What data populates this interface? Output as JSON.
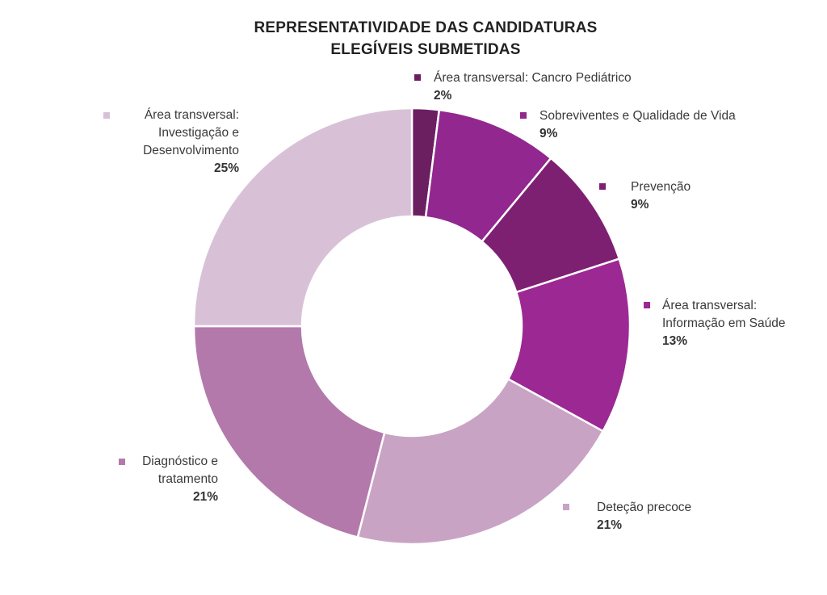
{
  "chart_data": {
    "type": "pie",
    "variant": "donut",
    "title_lines": [
      "REPRESENTATIVIDADE DAS CANDIDATURAS",
      "ELEGÍVEIS SUBMETIDAS"
    ],
    "slices": [
      {
        "label_lines": [
          "Área transversal: Cancro Pediátrico"
        ],
        "value": 2,
        "value_label": "2%",
        "color": "#6b1f61"
      },
      {
        "label_lines": [
          "Sobreviventes e Qualidade de Vida"
        ],
        "value": 9,
        "value_label": "9%",
        "color": "#92278f"
      },
      {
        "label_lines": [
          "Prevenção"
        ],
        "value": 9,
        "value_label": "9%",
        "color": "#7e2072"
      },
      {
        "label_lines": [
          "Área transversal:",
          "Informação em Saúde"
        ],
        "value": 13,
        "value_label": "13%",
        "color": "#9c2894"
      },
      {
        "label_lines": [
          "Deteção precoce"
        ],
        "value": 21,
        "value_label": "21%",
        "color": "#c9a3c4"
      },
      {
        "label_lines": [
          "Diagnóstico e",
          "tratamento"
        ],
        "value": 21,
        "value_label": "21%",
        "color": "#b479ab"
      },
      {
        "label_lines": [
          "Área transversal:",
          "Investigação e",
          "Desenvolvimento"
        ],
        "value": 25,
        "value_label": "25%",
        "color": "#d8c1d6"
      }
    ],
    "legend_position": "outside-labels"
  }
}
